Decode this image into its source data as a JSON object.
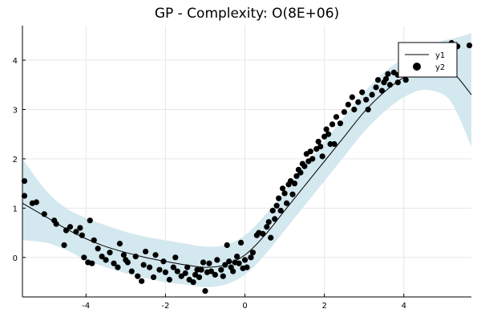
{
  "chart_data": {
    "type": "line",
    "title": "GP - Complexity: O(8E+06)",
    "xlabel": "",
    "ylabel": "",
    "xlim": [
      -5.6,
      5.7
    ],
    "ylim": [
      -0.8,
      4.7
    ],
    "xticks": [
      -4,
      -2,
      0,
      2,
      4
    ],
    "xtick_labels": [
      "-4",
      "-2",
      "0",
      "2",
      "4"
    ],
    "yticks": [
      0,
      1,
      2,
      3,
      4
    ],
    "ytick_labels": [
      "0",
      "1",
      "2",
      "3",
      "4"
    ],
    "grid": true,
    "legend_position": "top-right",
    "colors": {
      "band": "#d3e8ef",
      "line": "#000000",
      "points": "#000000"
    },
    "series": [
      {
        "name": "y1",
        "kind": "line",
        "x": [
          -5.6,
          -5.0,
          -4.5,
          -4.0,
          -3.5,
          -3.0,
          -2.5,
          -2.0,
          -1.5,
          -1.0,
          -0.5,
          0.0,
          0.5,
          1.0,
          1.5,
          2.0,
          2.5,
          3.0,
          3.5,
          4.0,
          4.5,
          5.0,
          5.3,
          5.7
        ],
        "y": [
          1.1,
          0.82,
          0.58,
          0.38,
          0.22,
          0.1,
          0.0,
          -0.08,
          -0.15,
          -0.2,
          -0.15,
          0.05,
          0.45,
          0.95,
          1.45,
          1.95,
          2.45,
          2.95,
          3.35,
          3.65,
          3.82,
          3.85,
          3.7,
          3.3
        ]
      },
      {
        "name": "confidence band",
        "kind": "band",
        "x": [
          -5.6,
          -5.0,
          -4.5,
          -4.0,
          -3.5,
          -3.0,
          -2.5,
          -2.0,
          -1.5,
          -1.0,
          -0.5,
          0.0,
          0.5,
          1.0,
          1.5,
          2.0,
          2.5,
          3.0,
          3.5,
          4.0,
          4.5,
          5.0,
          5.3,
          5.7
        ],
        "lower": [
          0.35,
          0.3,
          0.15,
          -0.05,
          -0.2,
          -0.32,
          -0.42,
          -0.5,
          -0.55,
          -0.6,
          -0.55,
          -0.35,
          0.05,
          0.55,
          1.05,
          1.55,
          2.05,
          2.55,
          2.95,
          3.25,
          3.4,
          3.3,
          3.0,
          2.25
        ],
        "upper": [
          2.0,
          1.35,
          1.0,
          0.8,
          0.65,
          0.52,
          0.42,
          0.35,
          0.28,
          0.22,
          0.25,
          0.45,
          0.85,
          1.35,
          1.85,
          2.35,
          2.85,
          3.35,
          3.75,
          4.05,
          4.25,
          4.4,
          4.45,
          4.55
        ]
      },
      {
        "name": "y2",
        "kind": "scatter",
        "points": [
          [
            -5.55,
            1.55
          ],
          [
            -5.55,
            1.25
          ],
          [
            -5.35,
            1.1
          ],
          [
            -5.25,
            1.12
          ],
          [
            -5.05,
            0.88
          ],
          [
            -4.8,
            0.75
          ],
          [
            -4.75,
            0.68
          ],
          [
            -4.55,
            0.25
          ],
          [
            -4.4,
            0.62
          ],
          [
            -4.25,
            0.52
          ],
          [
            -4.15,
            0.6
          ],
          [
            -4.1,
            0.45
          ],
          [
            -4.05,
            0.0
          ],
          [
            -3.95,
            -0.1
          ],
          [
            -3.9,
            0.75
          ],
          [
            -3.85,
            -0.12
          ],
          [
            -3.8,
            0.35
          ],
          [
            -3.7,
            0.18
          ],
          [
            -3.6,
            0.02
          ],
          [
            -3.5,
            -0.05
          ],
          [
            -3.4,
            0.1
          ],
          [
            -3.3,
            -0.12
          ],
          [
            -3.2,
            -0.2
          ],
          [
            -3.15,
            0.28
          ],
          [
            -3.05,
            0.05
          ],
          [
            -2.95,
            -0.1
          ],
          [
            -2.85,
            -0.28
          ],
          [
            -2.75,
            0.02
          ],
          [
            -2.7,
            -0.38
          ],
          [
            -2.6,
            -0.48
          ],
          [
            -2.55,
            -0.15
          ],
          [
            -2.5,
            0.12
          ],
          [
            -2.4,
            -0.2
          ],
          [
            -2.3,
            -0.4
          ],
          [
            -2.25,
            0.05
          ],
          [
            -2.15,
            -0.25
          ],
          [
            -2.05,
            -0.08
          ],
          [
            -2.0,
            -0.3
          ],
          [
            -1.9,
            -0.45
          ],
          [
            -1.8,
            -0.2
          ],
          [
            -1.75,
            0.0
          ],
          [
            -1.7,
            -0.28
          ],
          [
            -1.6,
            -0.38
          ],
          [
            -1.5,
            -0.32
          ],
          [
            -1.45,
            -0.2
          ],
          [
            -1.4,
            -0.45
          ],
          [
            -1.3,
            -0.5
          ],
          [
            -1.25,
            -0.35
          ],
          [
            -1.15,
            -0.4
          ],
          [
            -1.1,
            -0.25
          ],
          [
            -1.05,
            -0.1
          ],
          [
            -1.0,
            -0.68
          ],
          [
            -0.95,
            -0.3
          ],
          [
            -0.9,
            -0.12
          ],
          [
            -0.85,
            -0.28
          ],
          [
            -0.75,
            -0.35
          ],
          [
            -0.7,
            -0.05
          ],
          [
            -0.6,
            -0.25
          ],
          [
            -0.55,
            -0.38
          ],
          [
            -0.5,
            -0.15
          ],
          [
            -0.45,
            0.25
          ],
          [
            -0.4,
            -0.08
          ],
          [
            -0.35,
            -0.2
          ],
          [
            -0.3,
            -0.28
          ],
          [
            -0.25,
            -0.1
          ],
          [
            -0.2,
            0.02
          ],
          [
            -0.15,
            -0.12
          ],
          [
            -0.1,
            0.3
          ],
          [
            -0.05,
            -0.22
          ],
          [
            0.0,
            -0.05
          ],
          [
            0.05,
            -0.2
          ],
          [
            0.15,
            0.0
          ],
          [
            0.2,
            0.1
          ],
          [
            0.3,
            0.45
          ],
          [
            0.35,
            0.5
          ],
          [
            0.45,
            0.48
          ],
          [
            0.55,
            0.62
          ],
          [
            0.6,
            0.72
          ],
          [
            0.65,
            0.4
          ],
          [
            0.7,
            0.95
          ],
          [
            0.75,
            0.78
          ],
          [
            0.8,
            1.05
          ],
          [
            0.85,
            1.2
          ],
          [
            0.9,
            0.95
          ],
          [
            0.95,
            1.4
          ],
          [
            1.0,
            1.3
          ],
          [
            1.05,
            1.1
          ],
          [
            1.1,
            1.48
          ],
          [
            1.15,
            1.55
          ],
          [
            1.2,
            1.28
          ],
          [
            1.25,
            1.5
          ],
          [
            1.3,
            1.65
          ],
          [
            1.35,
            1.78
          ],
          [
            1.4,
            1.72
          ],
          [
            1.45,
            1.9
          ],
          [
            1.5,
            1.85
          ],
          [
            1.55,
            2.1
          ],
          [
            1.6,
            1.95
          ],
          [
            1.65,
            2.15
          ],
          [
            1.7,
            2.0
          ],
          [
            1.8,
            2.2
          ],
          [
            1.85,
            2.35
          ],
          [
            1.9,
            2.25
          ],
          [
            2.0,
            2.45
          ],
          [
            2.05,
            2.6
          ],
          [
            2.1,
            2.5
          ],
          [
            2.15,
            2.3
          ],
          [
            2.2,
            2.7
          ],
          [
            2.3,
            2.85
          ],
          [
            2.4,
            2.72
          ],
          [
            2.5,
            2.95
          ],
          [
            2.6,
            3.1
          ],
          [
            2.7,
            3.25
          ],
          [
            2.75,
            3.0
          ],
          [
            2.85,
            3.15
          ],
          [
            2.95,
            3.35
          ],
          [
            3.05,
            3.2
          ],
          [
            3.1,
            3.0
          ],
          [
            3.2,
            3.3
          ],
          [
            3.3,
            3.45
          ],
          [
            3.35,
            3.6
          ],
          [
            3.45,
            3.38
          ],
          [
            3.5,
            3.55
          ],
          [
            3.55,
            3.62
          ],
          [
            3.6,
            3.72
          ],
          [
            3.65,
            3.5
          ],
          [
            3.75,
            3.75
          ],
          [
            3.85,
            3.7
          ],
          [
            3.95,
            3.8
          ],
          [
            4.05,
            3.6
          ],
          [
            4.15,
            3.85
          ],
          [
            4.25,
            3.9
          ],
          [
            4.35,
            3.75
          ],
          [
            4.45,
            3.95
          ],
          [
            4.55,
            3.88
          ],
          [
            4.65,
            4.1
          ],
          [
            4.75,
            3.98
          ],
          [
            4.85,
            4.05
          ],
          [
            4.95,
            4.2
          ],
          [
            5.05,
            4.1
          ],
          [
            5.15,
            4.25
          ],
          [
            5.2,
            4.35
          ],
          [
            5.35,
            4.28
          ],
          [
            5.65,
            4.3
          ],
          [
            3.85,
            3.55
          ],
          [
            2.25,
            2.3
          ],
          [
            1.95,
            2.05
          ],
          [
            -4.5,
            0.55
          ],
          [
            -3.0,
            -0.05
          ],
          [
            -1.2,
            -0.25
          ]
        ]
      }
    ]
  }
}
